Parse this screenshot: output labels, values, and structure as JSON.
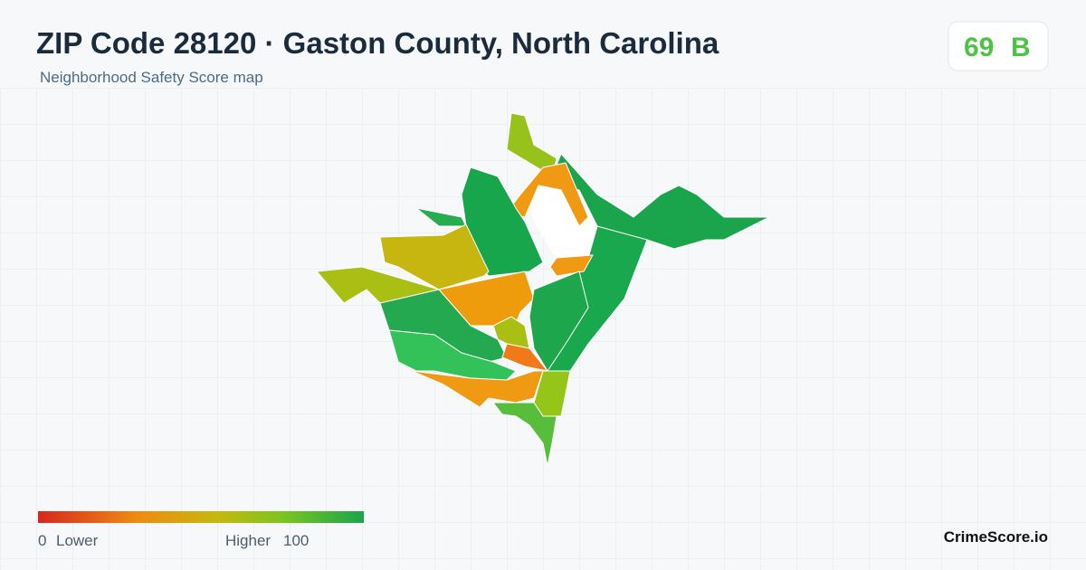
{
  "header": {
    "title": "ZIP Code 28120 · Gaston County, North Carolina",
    "subtitle": "Neighborhood Safety Score map"
  },
  "score": {
    "value": 69,
    "grade": "B"
  },
  "legend": {
    "min": 0,
    "min_label": "Lower",
    "max_label": "Higher",
    "max": 100
  },
  "footer": {
    "brand": "CrimeScore.io"
  }
}
